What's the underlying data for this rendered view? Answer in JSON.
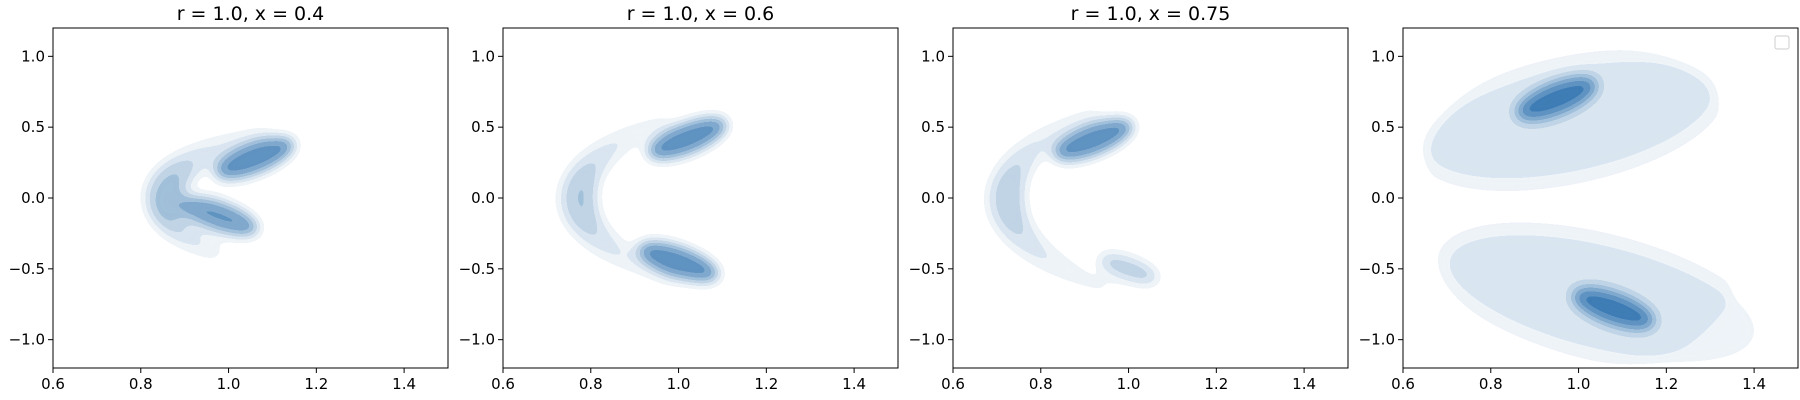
{
  "chart_data": [
    {
      "type": "kde-contour",
      "title": "r = 1.0, x = 0.4",
      "xlim": [
        0.6,
        1.5
      ],
      "ylim": [
        -1.2,
        1.2
      ],
      "xticks": [
        "0.6",
        "0.8",
        "1.0",
        "1.2",
        "1.4"
      ],
      "yticks": [
        "1.0",
        "0.5",
        "0.0",
        "−0.5",
        "−1.0"
      ],
      "grid": false,
      "colormap": "Blues",
      "shape": "crescent opening right",
      "arc": {
        "center": [
          1.45,
          -0.02
        ],
        "radius": 0.6,
        "angle_start": 128,
        "angle_end": 218
      },
      "modes": [
        {
          "x": 1.06,
          "y": 0.28,
          "strength": 1.0
        },
        {
          "x": 0.98,
          "y": -0.13,
          "strength": 0.9
        }
      ]
    },
    {
      "type": "kde-contour",
      "title": "r = 1.0, x = 0.6",
      "xlim": [
        0.6,
        1.5
      ],
      "ylim": [
        -1.2,
        1.2
      ],
      "xticks": [
        "0.6",
        "0.8",
        "1.0",
        "1.2",
        "1.4"
      ],
      "yticks": [
        "1.0",
        "0.5",
        "0.0",
        "−0.5",
        "−1.0"
      ],
      "grid": false,
      "colormap": "Blues",
      "shape": "crescent opening right",
      "arc": {
        "center": [
          1.62,
          0.0
        ],
        "radius": 0.85,
        "angle_start": 140,
        "angle_end": 222
      },
      "modes": [
        {
          "x": 1.02,
          "y": 0.42,
          "strength": 1.0
        },
        {
          "x": 1.0,
          "y": -0.45,
          "strength": 1.0
        }
      ]
    },
    {
      "type": "kde-contour",
      "title": "r = 1.0, x = 0.75",
      "xlim": [
        0.6,
        1.5
      ],
      "ylim": [
        -1.2,
        1.2
      ],
      "xticks": [
        "0.6",
        "0.8",
        "1.0",
        "1.2",
        "1.4"
      ],
      "yticks": [
        "1.0",
        "0.5",
        "0.0",
        "−0.5",
        "−1.0"
      ],
      "grid": false,
      "colormap": "Blues",
      "shape": "crescent opening right",
      "arc": {
        "center": [
          1.72,
          0.0
        ],
        "radius": 1.0,
        "angle_start": 143,
        "angle_end": 220
      },
      "modes": [
        {
          "x": 0.92,
          "y": 0.41,
          "strength": 1.0
        },
        {
          "x": 1.0,
          "y": -0.5,
          "strength": 0.3
        }
      ]
    },
    {
      "type": "kde-contour",
      "title": "",
      "xlim": [
        0.6,
        1.5
      ],
      "ylim": [
        -1.2,
        1.2
      ],
      "xticks": [
        "0.6",
        "0.8",
        "1.0",
        "1.2",
        "1.4"
      ],
      "yticks": [
        "1.0",
        "0.5",
        "0.0",
        "−0.5",
        "−1.0"
      ],
      "grid": false,
      "colormap": "Blues",
      "shape": "two bands with wide halo",
      "legend": "top-right (empty)",
      "modes": [
        {
          "x": 0.95,
          "y": 0.7,
          "strength": 1.0
        },
        {
          "x": 1.08,
          "y": -0.78,
          "strength": 1.0
        }
      ]
    }
  ]
}
